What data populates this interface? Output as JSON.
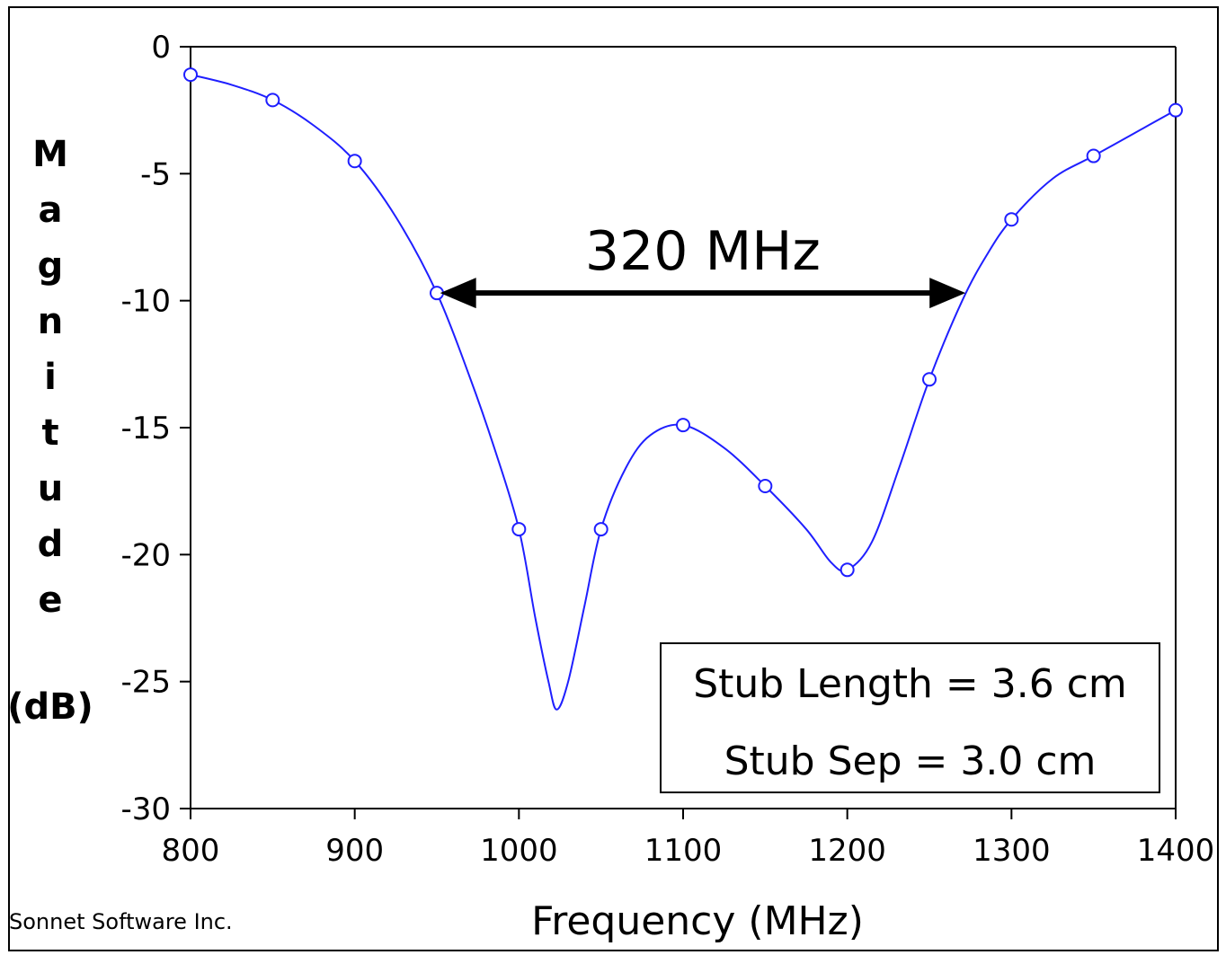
{
  "chart_data": {
    "type": "line",
    "xlabel": "Frequency (MHz)",
    "ylabel_letters": [
      "M",
      "a",
      "g",
      "n",
      "i",
      "t",
      "u",
      "d",
      "e"
    ],
    "ylabel_unit": "(dB)",
    "xlim": [
      800,
      1400
    ],
    "ylim": [
      -30,
      0
    ],
    "x_ticks": [
      800,
      900,
      1000,
      1100,
      1200,
      1300,
      1400
    ],
    "y_ticks": [
      0,
      -5,
      -10,
      -15,
      -20,
      -25,
      -30
    ],
    "grid": false,
    "series": [
      {
        "color": "#1f1fff",
        "markers": "open-circle",
        "points": [
          {
            "x": 800,
            "y": -1.1
          },
          {
            "x": 850,
            "y": -2.1
          },
          {
            "x": 900,
            "y": -4.5
          },
          {
            "x": 950,
            "y": -9.7
          },
          {
            "x": 1000,
            "y": -19.0
          },
          {
            "x": 1050,
            "y": -19.0
          },
          {
            "x": 1100,
            "y": -14.9
          },
          {
            "x": 1150,
            "y": -17.3
          },
          {
            "x": 1200,
            "y": -20.6
          },
          {
            "x": 1250,
            "y": -13.1
          },
          {
            "x": 1300,
            "y": -6.8
          },
          {
            "x": 1350,
            "y": -4.3
          },
          {
            "x": 1400,
            "y": -2.5
          }
        ],
        "curve": [
          {
            "x": 800,
            "y": -1.1
          },
          {
            "x": 825,
            "y": -1.5
          },
          {
            "x": 850,
            "y": -2.1
          },
          {
            "x": 875,
            "y": -3.1
          },
          {
            "x": 900,
            "y": -4.5
          },
          {
            "x": 925,
            "y": -6.7
          },
          {
            "x": 950,
            "y": -9.7
          },
          {
            "x": 970,
            "y": -13.0
          },
          {
            "x": 985,
            "y": -15.8
          },
          {
            "x": 1000,
            "y": -19.0
          },
          {
            "x": 1010,
            "y": -22.5
          },
          {
            "x": 1018,
            "y": -25.0
          },
          {
            "x": 1023,
            "y": -26.1
          },
          {
            "x": 1030,
            "y": -25.0
          },
          {
            "x": 1040,
            "y": -22.0
          },
          {
            "x": 1050,
            "y": -19.0
          },
          {
            "x": 1065,
            "y": -16.6
          },
          {
            "x": 1080,
            "y": -15.3
          },
          {
            "x": 1100,
            "y": -14.9
          },
          {
            "x": 1125,
            "y": -15.8
          },
          {
            "x": 1150,
            "y": -17.3
          },
          {
            "x": 1175,
            "y": -19.0
          },
          {
            "x": 1190,
            "y": -20.3
          },
          {
            "x": 1200,
            "y": -20.6
          },
          {
            "x": 1215,
            "y": -19.5
          },
          {
            "x": 1232,
            "y": -16.5
          },
          {
            "x": 1250,
            "y": -13.1
          },
          {
            "x": 1270,
            "y": -10.0
          },
          {
            "x": 1285,
            "y": -8.2
          },
          {
            "x": 1300,
            "y": -6.8
          },
          {
            "x": 1325,
            "y": -5.2
          },
          {
            "x": 1350,
            "y": -4.3
          },
          {
            "x": 1375,
            "y": -3.4
          },
          {
            "x": 1400,
            "y": -2.5
          }
        ]
      }
    ],
    "annotation": {
      "text": "320 MHz",
      "arrow_x": [
        952,
        1272
      ],
      "arrow_y": -9.7
    },
    "legend_box": {
      "position": "bottom-right",
      "lines": [
        "Stub Length = 3.6 cm",
        "Stub Sep = 3.0 cm"
      ]
    }
  },
  "credit": "Sonnet Software Inc."
}
